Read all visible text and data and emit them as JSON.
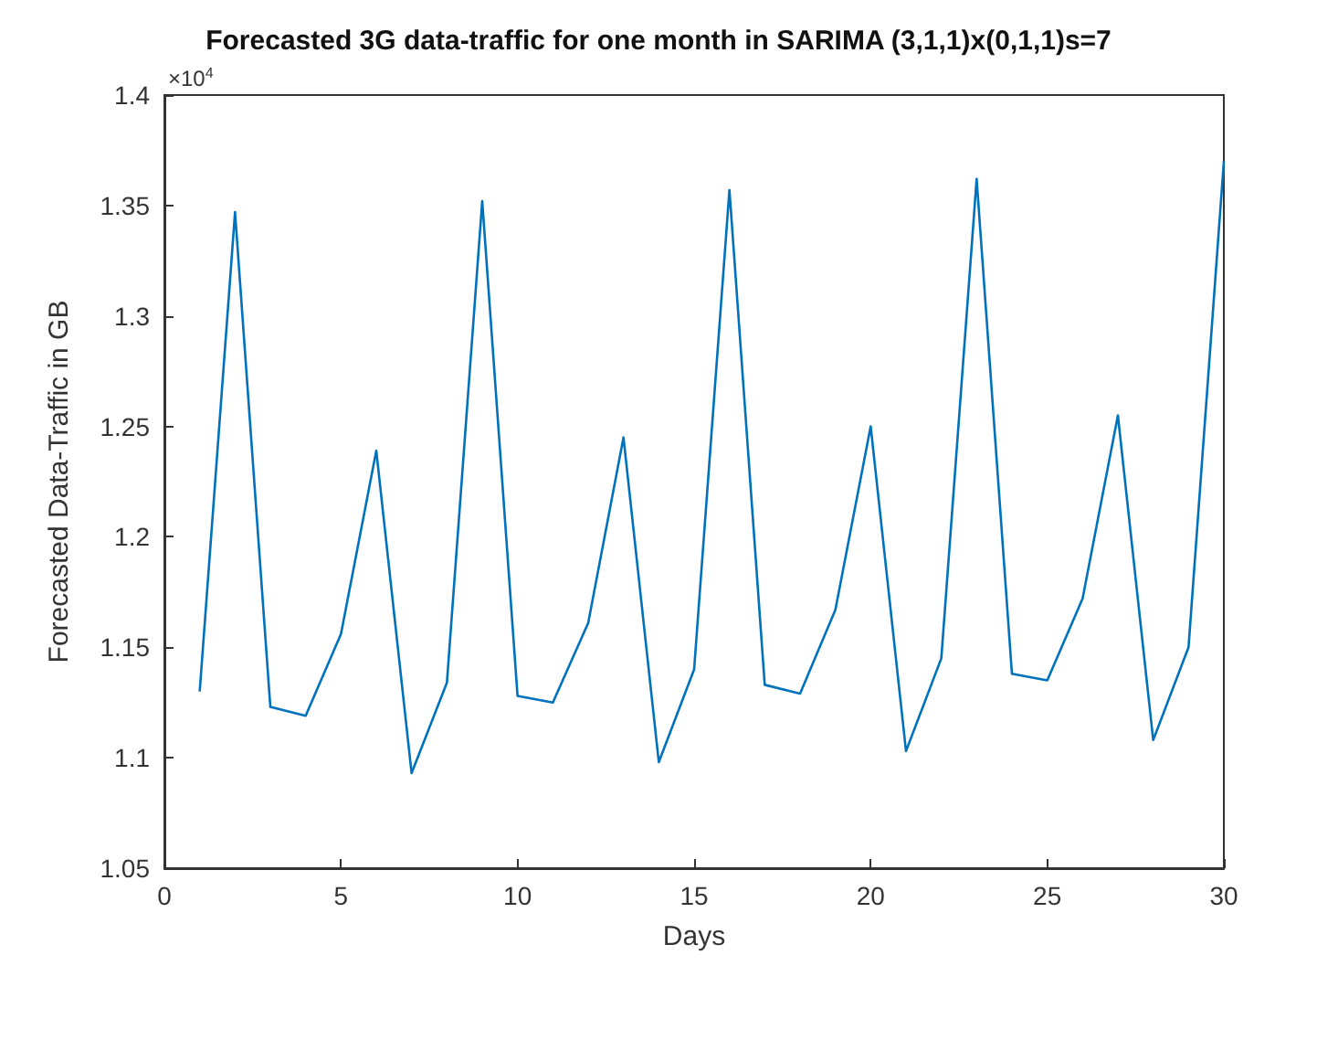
{
  "chart_data": {
    "type": "line",
    "title": "Forecasted 3G data-traffic for one month in SARIMA (3,1,1)x(0,1,1)s=7",
    "xlabel": "Days",
    "ylabel": "Forecasted Data-Traffic in GB",
    "annotations": [
      "×10$^{4}$"
    ],
    "x": [
      1,
      2,
      3,
      4,
      5,
      6,
      7,
      8,
      9,
      10,
      11,
      12,
      13,
      14,
      15,
      16,
      17,
      18,
      19,
      20,
      21,
      22,
      23,
      24,
      25,
      26,
      27,
      28,
      29,
      30
    ],
    "series": [
      {
        "color": "#0072bd",
        "values": [
          1.13,
          1.347,
          1.123,
          1.119,
          1.156,
          1.239,
          1.093,
          1.134,
          1.352,
          1.128,
          1.125,
          1.161,
          1.245,
          1.098,
          1.14,
          1.357,
          1.133,
          1.129,
          1.167,
          1.25,
          1.103,
          1.145,
          1.362,
          1.138,
          1.135,
          1.172,
          1.255,
          1.108,
          1.15,
          1.37
        ]
      }
    ],
    "xlim": [
      0,
      30
    ],
    "xticks": [
      0,
      5,
      10,
      15,
      20,
      25,
      30
    ],
    "ylim": [
      1.05,
      1.4
    ],
    "yticks": [
      1.05,
      1.1,
      1.15,
      1.2,
      1.25,
      1.3,
      1.35,
      1.4
    ],
    "grid": false,
    "marker": "none",
    "line_style": "solid"
  }
}
